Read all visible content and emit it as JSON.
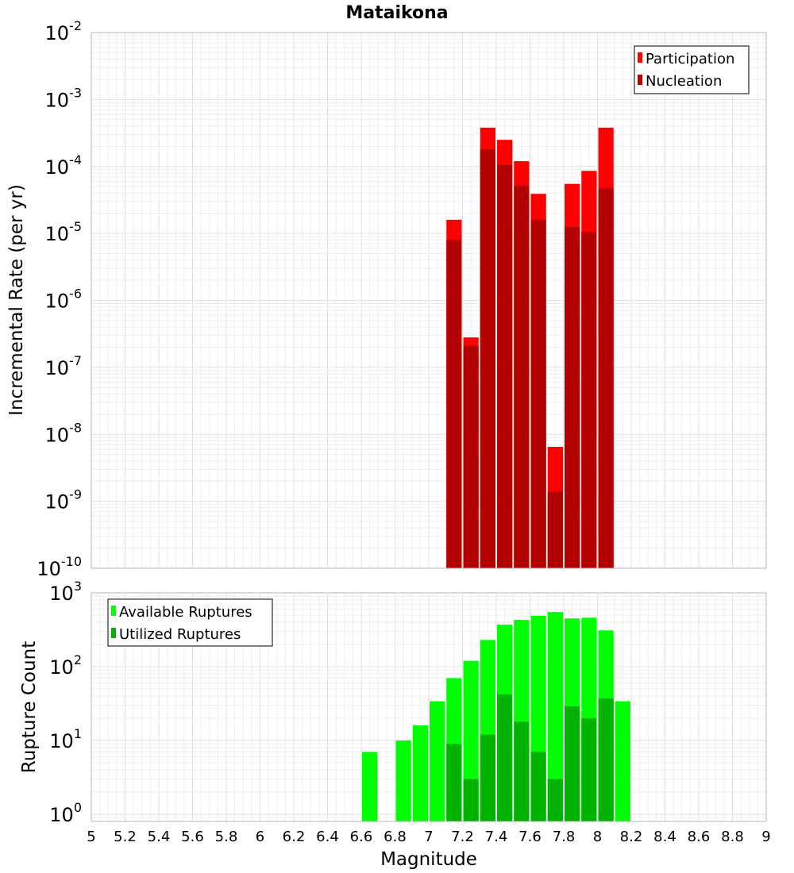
{
  "chart_data": [
    {
      "type": "bar",
      "title": "Mataikona",
      "xlabel": "Magnitude",
      "ylabel": "Incremental Rate (per yr)",
      "xlim": [
        5,
        9
      ],
      "ylim": [
        1e-10,
        0.01
      ],
      "y_scale": "log",
      "bar_width": 0.1,
      "legend_position": "top-right",
      "y_ticks": [
        {
          "base": "10",
          "exp": "-10",
          "value": 1e-10
        },
        {
          "base": "10",
          "exp": "-9",
          "value": 1e-09
        },
        {
          "base": "10",
          "exp": "-8",
          "value": 1e-08
        },
        {
          "base": "10",
          "exp": "-7",
          "value": 1e-07
        },
        {
          "base": "10",
          "exp": "-6",
          "value": 1e-06
        },
        {
          "base": "10",
          "exp": "-5",
          "value": 1e-05
        },
        {
          "base": "10",
          "exp": "-4",
          "value": 0.0001
        },
        {
          "base": "10",
          "exp": "-3",
          "value": 0.001
        },
        {
          "base": "10",
          "exp": "-2",
          "value": 0.01
        }
      ],
      "series": [
        {
          "name": "Participation",
          "color": "#ff0000",
          "x": [
            7.15,
            7.25,
            7.35,
            7.45,
            7.55,
            7.65,
            7.75,
            7.85,
            7.95,
            8.05
          ],
          "values": [
            1.6e-05,
            2.8e-07,
            0.00038,
            0.00025,
            0.00012,
            3.9e-05,
            6.5e-09,
            5.5e-05,
            8.6e-05,
            0.00038
          ]
        },
        {
          "name": "Nucleation",
          "color": "#b30000",
          "x": [
            7.15,
            7.25,
            7.35,
            7.45,
            7.55,
            7.65,
            7.75,
            7.85,
            7.95,
            8.05
          ],
          "values": [
            8e-06,
            2.1e-07,
            0.00018,
            0.000105,
            5.2e-05,
            1.6e-05,
            1.4e-09,
            1.25e-05,
            1.05e-05,
            4.7e-05
          ]
        }
      ]
    },
    {
      "type": "bar",
      "title": "",
      "xlabel": "Magnitude",
      "ylabel": "Rupture Count",
      "xlim": [
        5,
        9
      ],
      "ylim": [
        0.8,
        1000
      ],
      "y_scale": "log",
      "bar_width": 0.1,
      "legend_position": "top-left",
      "x_ticks": [
        "5",
        "5.2",
        "5.4",
        "5.6",
        "5.8",
        "6",
        "6.2",
        "6.4",
        "6.6",
        "6.8",
        "7",
        "7.2",
        "7.4",
        "7.6",
        "7.8",
        "8",
        "8.2",
        "8.4",
        "8.6",
        "8.8",
        "9"
      ],
      "y_ticks": [
        {
          "base": "10",
          "exp": "0",
          "value": 1
        },
        {
          "base": "10",
          "exp": "1",
          "value": 10
        },
        {
          "base": "10",
          "exp": "2",
          "value": 100
        },
        {
          "base": "10",
          "exp": "3",
          "value": 1000
        }
      ],
      "series": [
        {
          "name": "Available Ruptures",
          "color": "#00ff00",
          "x": [
            6.65,
            6.85,
            6.95,
            7.05,
            7.15,
            7.25,
            7.35,
            7.45,
            7.55,
            7.65,
            7.75,
            7.85,
            7.95,
            8.05,
            8.15
          ],
          "values": [
            7,
            10,
            16,
            34,
            70,
            120,
            230,
            370,
            430,
            490,
            550,
            450,
            460,
            310,
            34
          ]
        },
        {
          "name": "Utilized Ruptures",
          "color": "#00b300",
          "x": [
            7.15,
            7.25,
            7.35,
            7.45,
            7.55,
            7.65,
            7.75,
            7.85,
            7.95,
            8.05
          ],
          "values": [
            9,
            3,
            12,
            42,
            18,
            7,
            3,
            29,
            20,
            37
          ]
        }
      ]
    }
  ]
}
